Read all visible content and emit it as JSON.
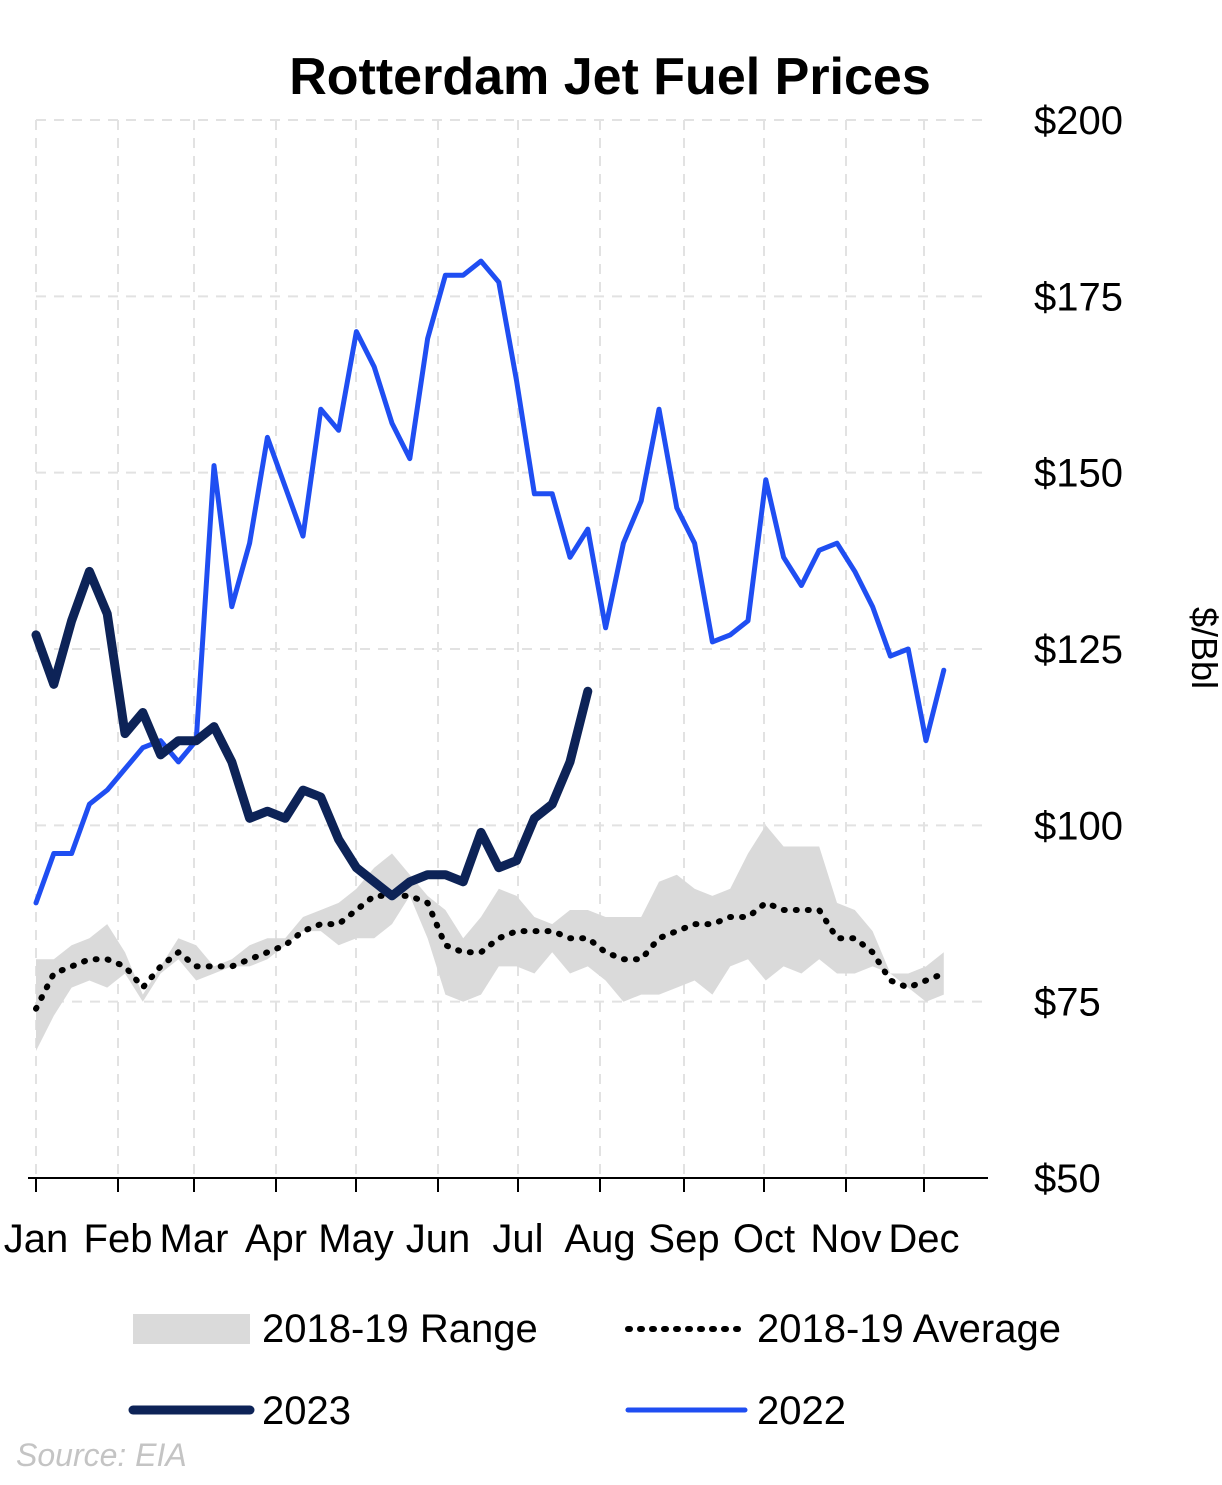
{
  "chart_data": {
    "type": "line",
    "title": "Rotterdam Jet Fuel Prices",
    "ylabel": "$/Bbl",
    "ylim": [
      50,
      200
    ],
    "yticks": [
      "$50",
      "$75",
      "$100",
      "$125",
      "$150",
      "$175",
      "$200"
    ],
    "ytick_values": [
      50,
      75,
      100,
      125,
      150,
      175,
      200
    ],
    "months": [
      "Jan",
      "Feb",
      "Mar",
      "Apr",
      "May",
      "Jun",
      "Jul",
      "Aug",
      "Sep",
      "Oct",
      "Nov",
      "Dec"
    ],
    "grid": true,
    "x_unit": "week of year",
    "source": "Source: EIA",
    "legend": {
      "range": "2018-19 Range",
      "average": "2018-19 Average",
      "y2023": "2023",
      "y2022": "2022"
    },
    "colors": {
      "range": "#dadada",
      "average": "#000000",
      "y2023": "#0d2357",
      "y2022": "#1f4ef2",
      "grid": "#e2e2e2"
    },
    "series": [
      {
        "name": "2018-19 Range",
        "kind": "band",
        "x": [
          1,
          2,
          3,
          4,
          5,
          6,
          7,
          8,
          9,
          10,
          11,
          12,
          13,
          14,
          15,
          16,
          17,
          18,
          19,
          20,
          21,
          22,
          23,
          24,
          25,
          26,
          27,
          28,
          29,
          30,
          31,
          32,
          33,
          34,
          35,
          36,
          37,
          38,
          39,
          40,
          41,
          42,
          43,
          44,
          45,
          46,
          47,
          48,
          49,
          50,
          51,
          52
        ],
        "low": [
          68,
          73,
          77,
          78,
          77,
          79,
          75,
          79,
          81,
          78,
          79,
          80,
          80,
          81,
          83,
          85,
          85,
          83,
          84,
          84,
          86,
          90,
          84,
          76,
          75,
          76,
          80,
          80,
          79,
          82,
          79,
          80,
          78,
          75,
          76,
          76,
          77,
          78,
          76,
          80,
          81,
          78,
          80,
          79,
          81,
          79,
          79,
          80,
          79,
          77,
          75,
          76
        ],
        "high": [
          81,
          81,
          83,
          84,
          86,
          82,
          76,
          80,
          84,
          83,
          80,
          81,
          83,
          84,
          84,
          87,
          88,
          89,
          91,
          94,
          96,
          93,
          90,
          88,
          84,
          87,
          91,
          90,
          87,
          86,
          88,
          88,
          87,
          87,
          87,
          92,
          93,
          91,
          90,
          91,
          96,
          100,
          97,
          97,
          97,
          89,
          88,
          85,
          79,
          79,
          80,
          82
        ]
      },
      {
        "name": "2018-19 Average",
        "kind": "dotted",
        "x": [
          1,
          2,
          3,
          4,
          5,
          6,
          7,
          8,
          9,
          10,
          11,
          12,
          13,
          14,
          15,
          16,
          17,
          18,
          19,
          20,
          21,
          22,
          23,
          24,
          25,
          26,
          27,
          28,
          29,
          30,
          31,
          32,
          33,
          34,
          35,
          36,
          37,
          38,
          39,
          40,
          41,
          42,
          43,
          44,
          45,
          46,
          47,
          48,
          49,
          50,
          51,
          52
        ],
        "values": [
          74,
          79,
          80,
          81,
          81,
          80,
          77,
          80,
          82,
          80,
          80,
          80,
          81,
          82,
          83,
          85,
          86,
          86,
          88,
          90,
          90,
          90,
          89,
          83,
          82,
          82,
          84,
          85,
          85,
          85,
          84,
          84,
          82,
          81,
          81,
          84,
          85,
          86,
          86,
          87,
          87,
          89,
          88,
          88,
          88,
          84,
          84,
          82,
          78,
          77,
          78,
          79
        ]
      },
      {
        "name": "2022",
        "kind": "line",
        "x": [
          1,
          2,
          3,
          4,
          5,
          6,
          7,
          8,
          9,
          10,
          11,
          12,
          13,
          14,
          15,
          16,
          17,
          18,
          19,
          20,
          21,
          22,
          23,
          24,
          25,
          26,
          27,
          28,
          29,
          30,
          31,
          32,
          33,
          34,
          35,
          36,
          37,
          38,
          39,
          40,
          41,
          42,
          43,
          44,
          45,
          46,
          47,
          48,
          49,
          50,
          51,
          52
        ],
        "values": [
          89,
          96,
          96,
          103,
          105,
          108,
          111,
          112,
          109,
          112,
          151,
          131,
          140,
          155,
          148,
          141,
          159,
          156,
          170,
          165,
          157,
          152,
          169,
          178,
          178,
          180,
          177,
          163,
          147,
          147,
          138,
          142,
          128,
          140,
          146,
          159,
          145,
          140,
          126,
          127,
          129,
          149,
          138,
          134,
          139,
          140,
          136,
          131,
          124,
          125,
          112,
          122
        ]
      },
      {
        "name": "2023",
        "kind": "line",
        "x": [
          1,
          2,
          3,
          4,
          5,
          6,
          7,
          8,
          9,
          10,
          11,
          12,
          13,
          14,
          15,
          16,
          17,
          18,
          19,
          20,
          21,
          22,
          23,
          24,
          25,
          26,
          27,
          28,
          29,
          30,
          31,
          32
        ],
        "values": [
          127,
          120,
          129,
          136,
          130,
          113,
          116,
          110,
          112,
          112,
          114,
          109,
          101,
          102,
          101,
          105,
          104,
          98,
          94,
          92,
          90,
          92,
          93,
          93,
          92,
          99,
          94,
          95,
          101,
          103,
          109,
          119
        ]
      }
    ]
  }
}
